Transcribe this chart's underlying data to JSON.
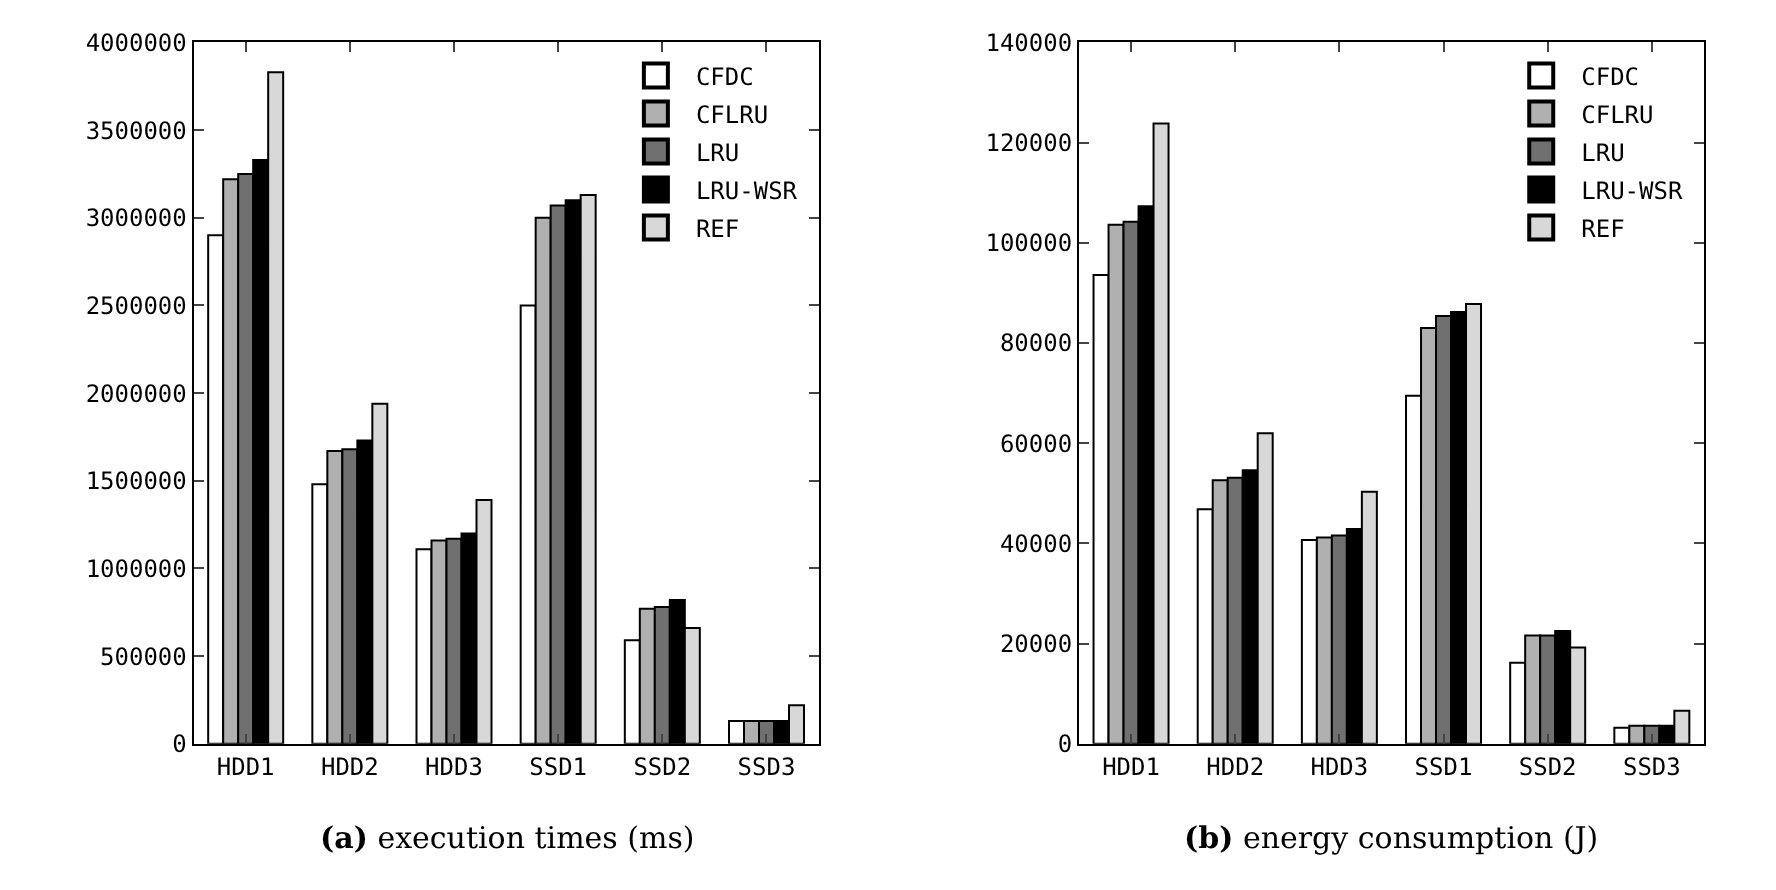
{
  "chart_data": [
    {
      "type": "bar",
      "categories": [
        "HDD1",
        "HDD2",
        "HDD3",
        "SSD1",
        "SSD2",
        "SSD3"
      ],
      "ylim": [
        0,
        4000000
      ],
      "yticks": [
        0,
        500000,
        1000000,
        1500000,
        2000000,
        2500000,
        3000000,
        3500000,
        4000000
      ],
      "legend": "top right",
      "annotations": [
        "(a) execution times (ms)"
      ],
      "series": [
        {
          "name": "CFDC",
          "color": "#ffffff",
          "values": [
            2900000,
            1480000,
            1110000,
            2500000,
            590000,
            130000
          ]
        },
        {
          "name": "CFLRU",
          "color": "#b0b0b0",
          "values": [
            3220000,
            1670000,
            1160000,
            3000000,
            770000,
            130000
          ]
        },
        {
          "name": "LRU",
          "color": "#707070",
          "values": [
            3250000,
            1680000,
            1170000,
            3070000,
            780000,
            130000
          ]
        },
        {
          "name": "LRU-WSR",
          "color": "#000000",
          "values": [
            3330000,
            1730000,
            1200000,
            3100000,
            820000,
            130000
          ]
        },
        {
          "name": "REF",
          "color": "#d8d8d8",
          "values": [
            3830000,
            1940000,
            1390000,
            3130000,
            660000,
            220000
          ]
        }
      ]
    },
    {
      "type": "bar",
      "categories": [
        "HDD1",
        "HDD2",
        "HDD3",
        "SSD1",
        "SSD2",
        "SSD3"
      ],
      "ylim": [
        0,
        140000
      ],
      "yticks": [
        0,
        20000,
        40000,
        60000,
        80000,
        100000,
        120000,
        140000
      ],
      "legend": "top right",
      "annotations": [
        "(b) energy consumption (J)"
      ],
      "series": [
        {
          "name": "CFDC",
          "color": "#ffffff",
          "values": [
            93600,
            46800,
            40700,
            69500,
            16200,
            3200
          ]
        },
        {
          "name": "CFLRU",
          "color": "#b0b0b0",
          "values": [
            103600,
            52600,
            41200,
            83000,
            21600,
            3600
          ]
        },
        {
          "name": "LRU",
          "color": "#707070",
          "values": [
            104200,
            53100,
            41600,
            85400,
            21600,
            3600
          ]
        },
        {
          "name": "LRU-WSR",
          "color": "#000000",
          "values": [
            107300,
            54600,
            42900,
            86200,
            22500,
            3600
          ]
        },
        {
          "name": "REF",
          "color": "#d8d8d8",
          "values": [
            123800,
            62000,
            50300,
            87800,
            19200,
            6600
          ]
        }
      ]
    }
  ]
}
